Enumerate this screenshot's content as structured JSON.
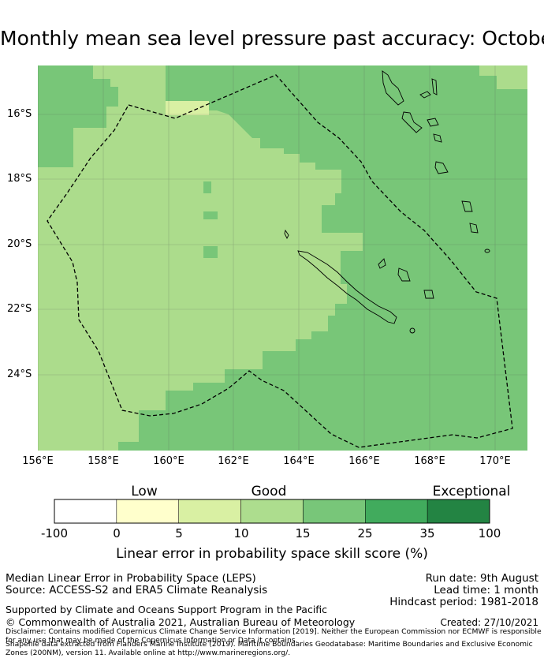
{
  "title": "Monthly mean sea level pressure past accuracy: October",
  "map": {
    "lat_labels": [
      "16°S",
      "18°S",
      "20°S",
      "22°S",
      "24°S"
    ],
    "lon_labels": [
      "156°E",
      "158°E",
      "160°E",
      "162°E",
      "164°E",
      "166°E",
      "168°E",
      "170°E"
    ],
    "colors": {
      "low": "#acdc8c",
      "mid": "#78c678",
      "pale": "#d9f0a3",
      "dashed": "#000000"
    }
  },
  "colorbar": {
    "categories": [
      "Low",
      "Good",
      "Exceptional"
    ],
    "ticks": [
      "-100",
      "0",
      "5",
      "10",
      "15",
      "25",
      "35",
      "100"
    ],
    "colors": [
      "#ffffff",
      "#ffffcc",
      "#d9f0a3",
      "#addd8e",
      "#78c679",
      "#41ab5d",
      "#238443"
    ],
    "label": "Linear error in probability space skill score (%)"
  },
  "info": {
    "metric": "Median Linear Error in Probability Space (LEPS)",
    "source": "Source: ACCESS-S2 and ERA5 Climate Reanalysis",
    "run_date": "Run date: 9th August",
    "lead_time": "Lead time: 1 month",
    "hindcast": "Hindcast period: 1981-2018",
    "support": "Supported by Climate and Oceans Support Program in the Pacific",
    "copyright": "© Commonwealth of Australia 2021, Australian Bureau of Meteorology",
    "created": "Created: 27/10/2021",
    "disclaimer1": "Disclaimer: Contains modified Copernicus Climate Change Service Information [2019]. Neither the European Commission nor ECMWF is responsible for any use that may be made of the Copernicus Information or Data it contains.",
    "disclaimer2": "Shapefile data extracted from Flanders Marine Institute (2019). Maritime Boundaries Geodatabase: Maritime Boundaries and Exclusive Economic Zones (200NM), version 11. Available online at http://www.marineregions.org/."
  }
}
